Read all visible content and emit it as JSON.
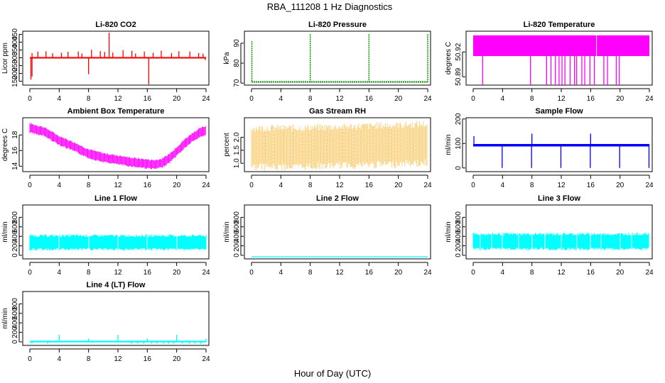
{
  "figure": {
    "title": "RBA_111208  1 Hz Diagnostics",
    "xlabel": "Hour of Day (UTC)"
  },
  "chart_data": [
    {
      "id": "co2",
      "type": "line",
      "title": "Li-820 CO2",
      "ylabel": "Licor ppm",
      "color": "#ff0000",
      "xlim": [
        0,
        24
      ],
      "ylim": [
        125,
        470
      ],
      "xticks": [
        "0",
        "4",
        "8",
        "12",
        "16",
        "20",
        "24"
      ],
      "yticks": [
        150,
        200,
        250,
        300,
        350,
        400,
        450
      ],
      "series": [
        {
          "name": "CO2",
          "x": [
            0,
            4,
            8,
            12,
            16,
            20,
            24
          ],
          "y": [
            300,
            300,
            300,
            300,
            300,
            300,
            300
          ]
        }
      ]
    },
    {
      "id": "pressure",
      "type": "line",
      "title": "Li-820 Pressure",
      "ylabel": "kPa",
      "color": "#009900",
      "xlim": [
        0,
        24
      ],
      "ylim": [
        69,
        96
      ],
      "xticks": [
        "0",
        "4",
        "8",
        "12",
        "16",
        "20",
        "24"
      ],
      "yticks": [
        70,
        80,
        90
      ],
      "series": [
        {
          "name": "Pressure",
          "x": [
            0,
            4,
            8,
            12,
            16,
            20,
            24
          ],
          "y": [
            70.5,
            70.5,
            70.5,
            70.5,
            70.5,
            70.5,
            70.5
          ]
        }
      ]
    },
    {
      "id": "temp",
      "type": "line",
      "title": "Li-820 Temperature",
      "ylabel": "degrees C",
      "color": "#ff00ff",
      "xlim": [
        0,
        24
      ],
      "ylim": [
        50.88,
        50.945
      ],
      "xticks": [
        "0",
        "4",
        "8",
        "12",
        "16",
        "20",
        "24"
      ],
      "yticks": [
        "50.89",
        "50.92"
      ],
      "ytick_values": [
        50.89,
        50.92
      ],
      "series": [
        {
          "name": "Temperature",
          "x": [
            0,
            24
          ],
          "y": [
            50.93,
            50.93
          ]
        }
      ]
    },
    {
      "id": "ambient",
      "type": "line",
      "title": "Ambient Box Temperature",
      "ylabel": "degrees C",
      "color": "#ff00ff",
      "xlim": [
        0,
        24
      ],
      "ylim": [
        13.3,
        20.2
      ],
      "xticks": [
        "0",
        "4",
        "8",
        "12",
        "16",
        "20",
        "24"
      ],
      "yticks": [
        14,
        16,
        18
      ],
      "series": [
        {
          "name": "Ambient",
          "x": [
            0,
            2,
            4,
            6,
            8,
            10,
            12,
            14,
            16,
            17,
            18,
            19,
            20,
            21,
            22,
            23,
            24
          ],
          "y": [
            18.9,
            18.4,
            17.3,
            16.5,
            15.6,
            15.1,
            14.8,
            14.5,
            14.3,
            14.2,
            14.4,
            15.0,
            15.9,
            16.8,
            17.6,
            18.2,
            18.6
          ]
        }
      ]
    },
    {
      "id": "rh",
      "type": "line",
      "title": "Gas Stream RH",
      "ylabel": "percent",
      "color": "#ffa500",
      "xlim": [
        0,
        24
      ],
      "ylim": [
        0.68,
        2.75
      ],
      "xticks": [
        "0",
        "4",
        "8",
        "12",
        "16",
        "20",
        "24"
      ],
      "yticks": [
        "1.0",
        "1.5",
        "2.0"
      ],
      "ytick_values": [
        1.0,
        1.5,
        2.0
      ],
      "series": [
        {
          "name": "RH",
          "x": [
            0,
            6,
            12,
            18,
            24
          ],
          "y": [
            1.6,
            1.6,
            1.65,
            1.7,
            1.75
          ]
        }
      ]
    },
    {
      "id": "sample",
      "type": "line",
      "title": "Sample Flow",
      "ylabel": "ml/min",
      "color": "#0000ff",
      "xlim": [
        0,
        24
      ],
      "ylim": [
        -15,
        205
      ],
      "xticks": [
        "0",
        "4",
        "8",
        "12",
        "16",
        "20",
        "24"
      ],
      "yticks": [
        0,
        100,
        200
      ],
      "series": [
        {
          "name": "Sample Flow",
          "x": [
            0,
            4,
            8,
            12,
            16,
            20,
            24
          ],
          "y": [
            95,
            95,
            95,
            95,
            95,
            95,
            95
          ]
        }
      ]
    },
    {
      "id": "line1",
      "type": "line",
      "title": "Line 1 Flow",
      "ylabel": "ml/min",
      "color": "#00ffff",
      "xlim": [
        0,
        24
      ],
      "ylim": [
        -75,
        1060
      ],
      "xticks": [
        "0",
        "4",
        "8",
        "12",
        "16",
        "20",
        "24"
      ],
      "yticks": [
        0,
        200,
        400,
        600,
        800
      ],
      "series": [
        {
          "name": "Line 1",
          "x": [
            0,
            24
          ],
          "y": [
            270,
            270
          ]
        }
      ]
    },
    {
      "id": "line2",
      "type": "line",
      "title": "Line 2 Flow",
      "ylabel": "ml/min",
      "color": "#00ffff",
      "xlim": [
        0,
        24
      ],
      "ylim": [
        -75,
        1060
      ],
      "xticks": [
        "0",
        "4",
        "8",
        "12",
        "16",
        "20",
        "24"
      ],
      "yticks": [
        0,
        200,
        400,
        600,
        800
      ],
      "series": [
        {
          "name": "Line 2",
          "x": [
            0,
            24
          ],
          "y": [
            -30,
            -30
          ]
        }
      ]
    },
    {
      "id": "line3",
      "type": "line",
      "title": "Line 3 Flow",
      "ylabel": "ml/min",
      "color": "#00ffff",
      "xlim": [
        0,
        24
      ],
      "ylim": [
        -75,
        1060
      ],
      "xticks": [
        "0",
        "4",
        "8",
        "12",
        "16",
        "20",
        "24"
      ],
      "yticks": [
        0,
        200,
        400,
        600,
        800
      ],
      "series": [
        {
          "name": "Line 3",
          "x": [
            0,
            24
          ],
          "y": [
            290,
            290
          ]
        }
      ]
    },
    {
      "id": "line4",
      "type": "line",
      "title": "Line 4 (LT) Flow",
      "ylabel": "ml/min",
      "color": "#00ffff",
      "xlim": [
        0,
        24
      ],
      "ylim": [
        -75,
        1060
      ],
      "xticks": [
        "0",
        "4",
        "8",
        "12",
        "16",
        "20",
        "24"
      ],
      "yticks": [
        0,
        200,
        400,
        600,
        800
      ],
      "series": [
        {
          "name": "Line 4",
          "x": [
            0,
            24
          ],
          "y": [
            0,
            0
          ]
        }
      ]
    }
  ]
}
